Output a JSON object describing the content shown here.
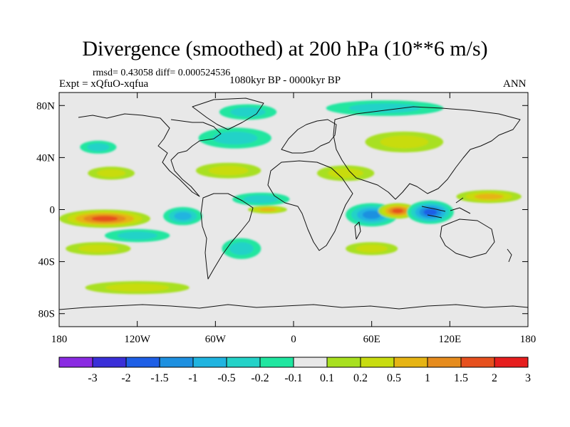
{
  "chart_data": {
    "type": "heatmap",
    "title": "Divergence (smoothed) at 200 hPa (10**6 m/s)",
    "stats": "rmsd= 0.43058 diff= 0.000524536",
    "experiment": "Expt = xQfuO-xqfua",
    "period": "1080kyr BP - 0000kyr BP",
    "season": "ANN",
    "xlim": [
      -180,
      180
    ],
    "ylim": [
      -90,
      90
    ],
    "x_ticks": [
      {
        "value": -180,
        "label": "180"
      },
      {
        "value": -120,
        "label": "120W"
      },
      {
        "value": -60,
        "label": "60W"
      },
      {
        "value": 0,
        "label": "0"
      },
      {
        "value": 60,
        "label": "60E"
      },
      {
        "value": 120,
        "label": "120E"
      },
      {
        "value": 180,
        "label": "180"
      }
    ],
    "y_ticks": [
      {
        "value": 80,
        "label": "80N"
      },
      {
        "value": 40,
        "label": "40N"
      },
      {
        "value": 0,
        "label": "0"
      },
      {
        "value": -40,
        "label": "40S"
      },
      {
        "value": -80,
        "label": "80S"
      }
    ],
    "levels": [
      -3,
      -2,
      -1.5,
      -1,
      -0.5,
      -0.2,
      -0.1,
      0.1,
      0.2,
      0.5,
      1,
      1.5,
      2,
      3
    ],
    "level_labels": [
      "-3",
      "-2",
      "-1.5",
      "-1",
      "-0.5",
      "-0.2",
      "-0.1",
      "0.1",
      "0.2",
      "0.5",
      "1",
      "1.5",
      "2",
      "3"
    ],
    "colors": [
      "#8a2be2",
      "#3a2fd8",
      "#1e5fe6",
      "#1e90e0",
      "#20b4e0",
      "#24d2c8",
      "#20e6a0",
      "#e8e8e8",
      "#a8e020",
      "#c8dc10",
      "#e6b414",
      "#e68c1e",
      "#e6501e",
      "#e61e1e"
    ],
    "features": [
      {
        "name": "North Pacific convergence",
        "lon": -150,
        "lat": 48,
        "rx": 14,
        "ry": 5,
        "value": -0.5
      },
      {
        "name": "North Pacific divergence",
        "lon": -140,
        "lat": 28,
        "rx": 18,
        "ry": 5,
        "value": 0.4
      },
      {
        "name": "North Atlantic convergence",
        "lon": -45,
        "lat": 55,
        "rx": 28,
        "ry": 8,
        "value": -0.6
      },
      {
        "name": "Greenland convergence",
        "lon": -35,
        "lat": 75,
        "rx": 22,
        "ry": 6,
        "value": -0.5
      },
      {
        "name": "Siberia convergence",
        "lon": 70,
        "lat": 78,
        "rx": 45,
        "ry": 6,
        "value": -0.5
      },
      {
        "name": "Central Asia divergence",
        "lon": 85,
        "lat": 52,
        "rx": 30,
        "ry": 8,
        "value": 0.4
      },
      {
        "name": "Arabia divergence",
        "lon": 40,
        "lat": 28,
        "rx": 22,
        "ry": 6,
        "value": 0.6
      },
      {
        "name": "North Atlantic subtropical divergence",
        "lon": -50,
        "lat": 30,
        "rx": 25,
        "ry": 6,
        "value": 0.5
      },
      {
        "name": "Atlantic equatorial convergence",
        "lon": -25,
        "lat": 8,
        "rx": 22,
        "ry": 5,
        "value": -0.7
      },
      {
        "name": "Atlantic divergence",
        "lon": -20,
        "lat": 0,
        "rx": 15,
        "ry": 3,
        "value": 0.8
      },
      {
        "name": "Central Pacific divergence",
        "lon": -145,
        "lat": -7,
        "rx": 35,
        "ry": 7,
        "value": 2.2
      },
      {
        "name": "East Pacific convergence",
        "lon": -85,
        "lat": -5,
        "rx": 15,
        "ry": 7,
        "value": -1.0
      },
      {
        "name": "Indian Ocean convergence",
        "lon": 60,
        "lat": -4,
        "rx": 20,
        "ry": 9,
        "value": -1.5
      },
      {
        "name": "Indian Ocean divergence",
        "lon": 80,
        "lat": -1,
        "rx": 15,
        "ry": 6,
        "value": 2.0
      },
      {
        "name": "Maritime Continent convergence",
        "lon": 105,
        "lat": -2,
        "rx": 18,
        "ry": 9,
        "value": -2.0
      },
      {
        "name": "West Pacific divergence",
        "lon": 150,
        "lat": 10,
        "rx": 25,
        "ry": 5,
        "value": 1.0
      },
      {
        "name": "South Pacific convergence",
        "lon": -120,
        "lat": -20,
        "rx": 25,
        "ry": 5,
        "value": -0.6
      },
      {
        "name": "South Pacific divergence",
        "lon": -150,
        "lat": -30,
        "rx": 25,
        "ry": 5,
        "value": 0.6
      },
      {
        "name": "South Atlantic convergence",
        "lon": -40,
        "lat": -30,
        "rx": 15,
        "ry": 8,
        "value": -0.5
      },
      {
        "name": "Southern Indian divergence",
        "lon": 60,
        "lat": -30,
        "rx": 20,
        "ry": 5,
        "value": 0.7
      },
      {
        "name": "Southern Ocean divergence",
        "lon": -120,
        "lat": -60,
        "rx": 40,
        "ry": 5,
        "value": 0.3
      }
    ]
  }
}
